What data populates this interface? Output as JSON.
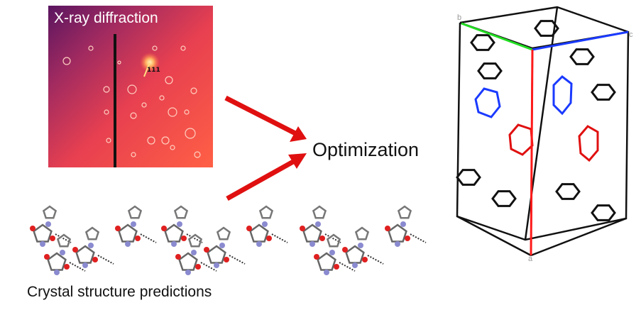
{
  "xray_panel": {
    "title": "X-ray diffraction",
    "peak_label": "111"
  },
  "process": {
    "label": "Optimization"
  },
  "predictions_panel": {
    "label": "Crystal structure predictions"
  },
  "unit_cell": {
    "axis_b": "b",
    "axis_c": "c",
    "axis_a": "a"
  },
  "colors": {
    "arrow": "#e01010",
    "axis_a": "#ff1a1a",
    "axis_b": "#22dd22",
    "axis_c": "#1a3aff",
    "molecule_blue": "#1a3aff",
    "molecule_red": "#e01010",
    "xrd_bg_dark": "#6a1a6a",
    "xrd_bg_bright": "#ff5040"
  }
}
